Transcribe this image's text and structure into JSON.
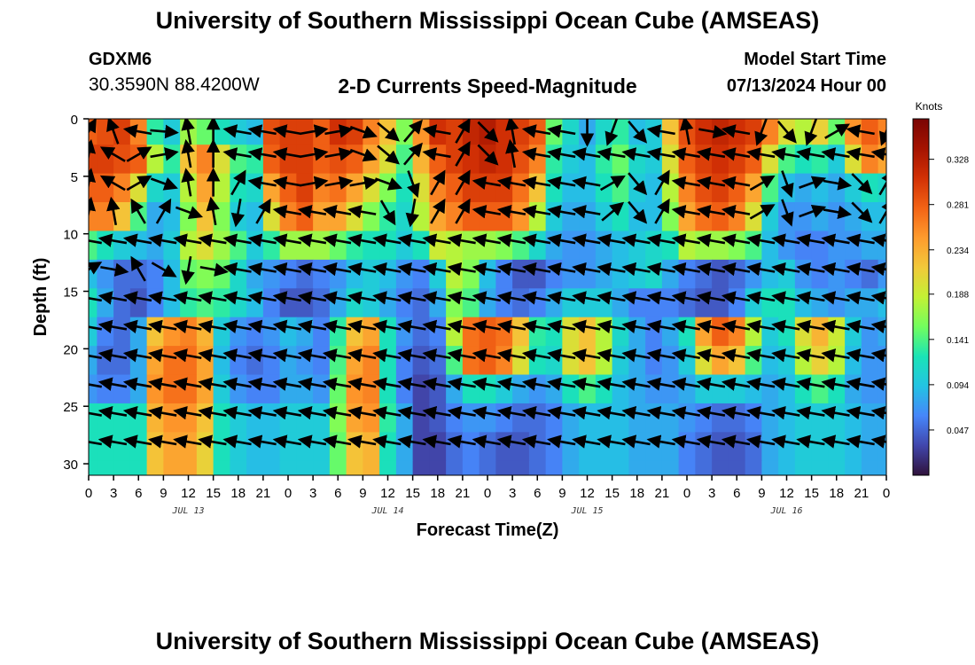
{
  "header": {
    "title": "University of Southern Mississippi Ocean Cube (AMSEAS)",
    "station_id": "GDXM6",
    "station_coords": "30.3590N  88.4200W",
    "chart_title": "2-D Currents Speed-Magnitude",
    "model_start_label": "Model Start Time",
    "model_start_value": "07/13/2024 Hour 00"
  },
  "footer": {
    "title": "University of Southern Mississippi Ocean Cube (AMSEAS)"
  },
  "chart_data": {
    "type": "heatmap",
    "title": "2-D Currents Speed-Magnitude",
    "xlabel": "Forecast Time(Z)",
    "ylabel": "Depth (ft)",
    "colorbar_label": "Knots",
    "x_start": "2024-07-13 00Z",
    "x_tick_labels": [
      "0",
      "3",
      "6",
      "9",
      "12",
      "15",
      "18",
      "21",
      "0",
      "3",
      "6",
      "9",
      "12",
      "15",
      "18",
      "21",
      "0",
      "3",
      "6",
      "9",
      "12",
      "15",
      "18",
      "21",
      "0",
      "3",
      "6",
      "9",
      "12",
      "15",
      "18",
      "21",
      "0"
    ],
    "day_labels": [
      "JUL 13",
      "JUL 14",
      "JUL 15",
      "JUL 16"
    ],
    "y_tick_labels": [
      "0",
      "5",
      "10",
      "15",
      "20",
      "25",
      "30"
    ],
    "ylim": [
      0,
      31
    ],
    "y_inverted": true,
    "colorbar_ticks": [
      "0.328",
      "0.281",
      "0.234",
      "0.188",
      "0.141",
      "0.094",
      "0.047"
    ],
    "colorbar_range": [
      0,
      0.37
    ],
    "colormap": [
      "#30123b",
      "#4146ac",
      "#4686fa",
      "#23c3e3",
      "#1ae4b6",
      "#72fe5e",
      "#c3f134",
      "#f2c93a",
      "#fe9b2d",
      "#f36315",
      "#d23105",
      "#a51301",
      "#7a0403"
    ],
    "depths": [
      1,
      3.5,
      6,
      8.5,
      11,
      13.5,
      16,
      18.5,
      21,
      23.5,
      26,
      28.5,
      31
    ],
    "times": [
      "0",
      "2",
      "4",
      "6",
      "8",
      "10",
      "12",
      "14",
      "16",
      "18",
      "20",
      "22",
      "24",
      "26",
      "28",
      "30",
      "32",
      "34",
      "36",
      "38",
      "40",
      "42",
      "44",
      "46",
      "48",
      "50",
      "52",
      "54",
      "56",
      "58",
      "60",
      "62",
      "64",
      "66",
      "68",
      "70",
      "72",
      "74",
      "76",
      "78",
      "80",
      "82",
      "84",
      "86",
      "88",
      "90",
      "92",
      "94",
      "96"
    ],
    "speed_rows": [
      [
        0.28,
        0.29,
        0.3,
        0.26,
        0.13,
        0.1,
        0.17,
        0.15,
        0.12,
        0.1,
        0.09,
        0.29,
        0.3,
        0.3,
        0.28,
        0.31,
        0.3,
        0.26,
        0.22,
        0.16,
        0.25,
        0.31,
        0.3,
        0.32,
        0.33,
        0.31,
        0.3,
        0.28,
        0.15,
        0.11,
        0.08,
        0.11,
        0.13,
        0.09,
        0.1,
        0.22,
        0.29,
        0.31,
        0.32,
        0.31,
        0.3,
        0.26,
        0.2,
        0.18,
        0.21,
        0.15,
        0.25,
        0.28,
        0.26
      ],
      [
        0.3,
        0.3,
        0.29,
        0.28,
        0.18,
        0.13,
        0.22,
        0.26,
        0.2,
        0.14,
        0.13,
        0.28,
        0.3,
        0.3,
        0.28,
        0.29,
        0.28,
        0.24,
        0.2,
        0.14,
        0.23,
        0.28,
        0.3,
        0.31,
        0.32,
        0.31,
        0.29,
        0.26,
        0.13,
        0.1,
        0.09,
        0.13,
        0.15,
        0.11,
        0.1,
        0.2,
        0.28,
        0.3,
        0.31,
        0.3,
        0.28,
        0.2,
        0.14,
        0.12,
        0.13,
        0.1,
        0.2,
        0.26,
        0.24
      ],
      [
        0.28,
        0.28,
        0.26,
        0.2,
        0.11,
        0.1,
        0.18,
        0.24,
        0.18,
        0.12,
        0.11,
        0.24,
        0.28,
        0.3,
        0.26,
        0.27,
        0.24,
        0.2,
        0.16,
        0.12,
        0.2,
        0.26,
        0.28,
        0.3,
        0.3,
        0.3,
        0.27,
        0.22,
        0.12,
        0.09,
        0.09,
        0.12,
        0.14,
        0.1,
        0.09,
        0.18,
        0.26,
        0.29,
        0.3,
        0.28,
        0.24,
        0.14,
        0.09,
        0.08,
        0.09,
        0.08,
        0.1,
        0.12,
        0.11
      ],
      [
        0.26,
        0.26,
        0.22,
        0.14,
        0.08,
        0.09,
        0.16,
        0.22,
        0.16,
        0.1,
        0.09,
        0.2,
        0.26,
        0.28,
        0.24,
        0.24,
        0.2,
        0.16,
        0.13,
        0.11,
        0.18,
        0.24,
        0.26,
        0.28,
        0.28,
        0.28,
        0.25,
        0.18,
        0.1,
        0.08,
        0.08,
        0.1,
        0.12,
        0.09,
        0.09,
        0.16,
        0.24,
        0.27,
        0.28,
        0.26,
        0.2,
        0.1,
        0.07,
        0.07,
        0.08,
        0.07,
        0.08,
        0.09,
        0.09
      ],
      [
        0.14,
        0.12,
        0.1,
        0.09,
        0.08,
        0.1,
        0.18,
        0.2,
        0.17,
        0.14,
        0.1,
        0.13,
        0.17,
        0.17,
        0.17,
        0.15,
        0.13,
        0.12,
        0.12,
        0.1,
        0.12,
        0.19,
        0.18,
        0.17,
        0.17,
        0.16,
        0.14,
        0.11,
        0.08,
        0.07,
        0.07,
        0.08,
        0.09,
        0.1,
        0.11,
        0.12,
        0.18,
        0.17,
        0.17,
        0.16,
        0.14,
        0.09,
        0.07,
        0.06,
        0.06,
        0.07,
        0.07,
        0.08,
        0.08
      ],
      [
        0.09,
        0.07,
        0.05,
        0.05,
        0.06,
        0.09,
        0.15,
        0.16,
        0.15,
        0.11,
        0.08,
        0.07,
        0.06,
        0.05,
        0.06,
        0.07,
        0.09,
        0.1,
        0.09,
        0.07,
        0.06,
        0.1,
        0.18,
        0.16,
        0.09,
        0.06,
        0.04,
        0.04,
        0.06,
        0.07,
        0.07,
        0.08,
        0.09,
        0.1,
        0.11,
        0.08,
        0.06,
        0.05,
        0.04,
        0.05,
        0.07,
        0.09,
        0.1,
        0.07,
        0.06,
        0.07,
        0.06,
        0.05,
        0.07
      ],
      [
        0.12,
        0.08,
        0.05,
        0.04,
        0.06,
        0.09,
        0.13,
        0.14,
        0.13,
        0.11,
        0.09,
        0.06,
        0.04,
        0.04,
        0.05,
        0.08,
        0.11,
        0.1,
        0.08,
        0.06,
        0.05,
        0.08,
        0.16,
        0.14,
        0.08,
        0.06,
        0.05,
        0.06,
        0.08,
        0.1,
        0.1,
        0.1,
        0.08,
        0.06,
        0.06,
        0.06,
        0.05,
        0.04,
        0.04,
        0.06,
        0.1,
        0.12,
        0.12,
        0.09,
        0.08,
        0.07,
        0.08,
        0.08,
        0.09
      ],
      [
        0.1,
        0.06,
        0.05,
        0.08,
        0.22,
        0.25,
        0.26,
        0.23,
        0.1,
        0.07,
        0.06,
        0.07,
        0.09,
        0.08,
        0.06,
        0.13,
        0.22,
        0.24,
        0.12,
        0.07,
        0.05,
        0.06,
        0.18,
        0.27,
        0.28,
        0.27,
        0.22,
        0.13,
        0.12,
        0.2,
        0.22,
        0.18,
        0.11,
        0.08,
        0.06,
        0.08,
        0.12,
        0.24,
        0.28,
        0.26,
        0.18,
        0.1,
        0.12,
        0.2,
        0.23,
        0.19,
        0.1,
        0.07,
        0.08
      ],
      [
        0.08,
        0.05,
        0.05,
        0.08,
        0.24,
        0.27,
        0.27,
        0.24,
        0.09,
        0.06,
        0.05,
        0.06,
        0.08,
        0.07,
        0.06,
        0.14,
        0.24,
        0.26,
        0.12,
        0.06,
        0.04,
        0.05,
        0.14,
        0.27,
        0.28,
        0.26,
        0.2,
        0.12,
        0.11,
        0.2,
        0.22,
        0.18,
        0.1,
        0.08,
        0.06,
        0.07,
        0.1,
        0.2,
        0.24,
        0.22,
        0.14,
        0.09,
        0.1,
        0.18,
        0.21,
        0.18,
        0.09,
        0.07,
        0.07
      ],
      [
        0.07,
        0.06,
        0.06,
        0.08,
        0.25,
        0.27,
        0.27,
        0.24,
        0.1,
        0.07,
        0.06,
        0.06,
        0.08,
        0.08,
        0.07,
        0.15,
        0.25,
        0.26,
        0.12,
        0.06,
        0.03,
        0.04,
        0.08,
        0.12,
        0.12,
        0.1,
        0.08,
        0.07,
        0.08,
        0.12,
        0.14,
        0.12,
        0.09,
        0.08,
        0.07,
        0.07,
        0.08,
        0.1,
        0.1,
        0.1,
        0.09,
        0.08,
        0.09,
        0.12,
        0.14,
        0.12,
        0.08,
        0.07,
        0.07
      ],
      [
        0.12,
        0.12,
        0.12,
        0.12,
        0.23,
        0.25,
        0.25,
        0.22,
        0.12,
        0.1,
        0.09,
        0.09,
        0.1,
        0.1,
        0.1,
        0.16,
        0.24,
        0.25,
        0.13,
        0.08,
        0.03,
        0.04,
        0.06,
        0.07,
        0.07,
        0.06,
        0.05,
        0.05,
        0.06,
        0.08,
        0.09,
        0.09,
        0.09,
        0.08,
        0.08,
        0.08,
        0.07,
        0.06,
        0.05,
        0.05,
        0.06,
        0.08,
        0.09,
        0.1,
        0.1,
        0.1,
        0.09,
        0.08,
        0.08
      ],
      [
        0.12,
        0.12,
        0.12,
        0.12,
        0.22,
        0.24,
        0.24,
        0.21,
        0.12,
        0.1,
        0.09,
        0.09,
        0.1,
        0.1,
        0.1,
        0.15,
        0.22,
        0.23,
        0.12,
        0.08,
        0.03,
        0.03,
        0.05,
        0.06,
        0.05,
        0.04,
        0.04,
        0.05,
        0.06,
        0.08,
        0.09,
        0.09,
        0.09,
        0.08,
        0.08,
        0.08,
        0.06,
        0.05,
        0.04,
        0.04,
        0.05,
        0.08,
        0.09,
        0.1,
        0.1,
        0.1,
        0.09,
        0.08,
        0.08
      ],
      [
        0.12,
        0.12,
        0.12,
        0.12,
        0.22,
        0.24,
        0.24,
        0.21,
        0.12,
        0.1,
        0.09,
        0.09,
        0.1,
        0.1,
        0.1,
        0.15,
        0.22,
        0.23,
        0.12,
        0.08,
        0.03,
        0.03,
        0.05,
        0.06,
        0.05,
        0.04,
        0.04,
        0.05,
        0.06,
        0.08,
        0.09,
        0.09,
        0.09,
        0.08,
        0.08,
        0.08,
        0.06,
        0.05,
        0.04,
        0.04,
        0.05,
        0.08,
        0.09,
        0.1,
        0.1,
        0.1,
        0.09,
        0.08,
        0.08
      ]
    ],
    "arrow_columns_hours": [
      0,
      3,
      6,
      9,
      12,
      15,
      18,
      21,
      24,
      27,
      30,
      33,
      36,
      39,
      42,
      45,
      48,
      51,
      54,
      57,
      60,
      63,
      66,
      69,
      72,
      75,
      78,
      81,
      84,
      87,
      90,
      93,
      96
    ],
    "arrow_rows_depth_ft": [
      0,
      2,
      4.5,
      7,
      9.5,
      12,
      14.5,
      17,
      19.5,
      22,
      24.5,
      27
    ],
    "arrow_direction_deg_rows": [
      [
        30,
        -20,
        280,
        95,
        -10,
        0,
        280,
        280,
        280,
        80,
        80,
        110,
        130,
        40,
        280,
        30,
        135,
        350,
        280,
        280,
        180,
        200,
        140,
        280,
        350,
        100,
        280,
        200,
        140,
        200,
        60,
        280,
        200
      ],
      [
        10,
        300,
        60,
        80,
        -10,
        0,
        280,
        280,
        280,
        80,
        80,
        110,
        130,
        40,
        280,
        30,
        135,
        350,
        280,
        280,
        280,
        280,
        280,
        280,
        280,
        280,
        280,
        280,
        280,
        280,
        280,
        280,
        280
      ],
      [
        10,
        300,
        60,
        110,
        -10,
        0,
        30,
        280,
        280,
        80,
        80,
        80,
        110,
        160,
        30,
        30,
        280,
        280,
        280,
        280,
        280,
        60,
        140,
        30,
        280,
        280,
        280,
        60,
        160,
        70,
        100,
        135,
        30
      ],
      [
        10,
        350,
        330,
        30,
        110,
        -10,
        190,
        30,
        280,
        280,
        280,
        280,
        150,
        190,
        30,
        30,
        280,
        280,
        280,
        280,
        280,
        50,
        140,
        30,
        280,
        280,
        280,
        60,
        160,
        70,
        100,
        135,
        30
      ],
      [
        280,
        280,
        280,
        280,
        280,
        280,
        280,
        280,
        280,
        280,
        280,
        280,
        280,
        280,
        280,
        280,
        280,
        280,
        280,
        280,
        280,
        280,
        280,
        280,
        280,
        280,
        280,
        280,
        280,
        280,
        280,
        280,
        280
      ],
      [
        60,
        100,
        330,
        120,
        190,
        100,
        280,
        280,
        280,
        280,
        280,
        280,
        280,
        280,
        280,
        280,
        280,
        280,
        280,
        280,
        280,
        280,
        280,
        280,
        280,
        280,
        280,
        280,
        280,
        280,
        280,
        280,
        280
      ],
      [
        280,
        280,
        280,
        280,
        280,
        280,
        280,
        280,
        280,
        280,
        280,
        280,
        280,
        280,
        280,
        280,
        280,
        280,
        280,
        280,
        280,
        280,
        280,
        280,
        280,
        280,
        280,
        280,
        280,
        280,
        280,
        280,
        280
      ],
      [
        280,
        280,
        280,
        280,
        280,
        280,
        280,
        280,
        280,
        280,
        280,
        280,
        280,
        280,
        280,
        280,
        280,
        280,
        280,
        280,
        280,
        280,
        280,
        280,
        280,
        280,
        280,
        280,
        280,
        280,
        280,
        280,
        280
      ],
      [
        280,
        280,
        280,
        280,
        280,
        280,
        280,
        280,
        280,
        280,
        280,
        280,
        280,
        280,
        280,
        280,
        280,
        280,
        280,
        280,
        280,
        280,
        280,
        280,
        280,
        280,
        280,
        280,
        280,
        280,
        280,
        280,
        280
      ],
      [
        280,
        280,
        280,
        280,
        280,
        280,
        280,
        280,
        280,
        280,
        280,
        280,
        280,
        280,
        280,
        280,
        280,
        280,
        280,
        280,
        280,
        280,
        280,
        280,
        280,
        280,
        280,
        280,
        280,
        280,
        280,
        280,
        280
      ],
      [
        280,
        280,
        280,
        280,
        280,
        280,
        280,
        280,
        280,
        280,
        280,
        280,
        280,
        280,
        280,
        280,
        280,
        280,
        280,
        280,
        280,
        280,
        280,
        280,
        280,
        280,
        280,
        280,
        280,
        280,
        280,
        280,
        280
      ],
      [
        280,
        280,
        280,
        280,
        280,
        280,
        280,
        280,
        280,
        280,
        280,
        280,
        280,
        280,
        280,
        280,
        280,
        280,
        280,
        280,
        280,
        280,
        280,
        280,
        280,
        280,
        280,
        280,
        280,
        280,
        280,
        280,
        280
      ]
    ]
  }
}
